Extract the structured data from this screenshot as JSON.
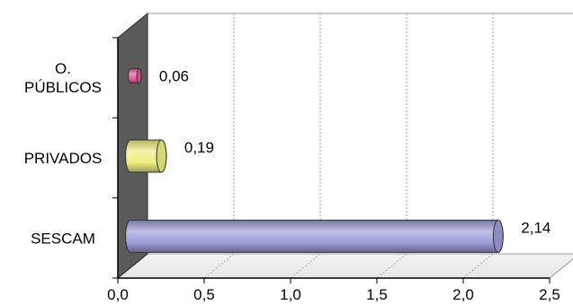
{
  "chart_data": {
    "type": "bar",
    "orientation": "horizontal",
    "style": "3d-cylinder",
    "categories": [
      {
        "lines": [
          "O.",
          "PÚBLICOS"
        ]
      },
      {
        "lines": [
          "PRIVADOS"
        ]
      },
      {
        "lines": [
          "SESCAM"
        ]
      }
    ],
    "values": [
      0.06,
      0.19,
      2.14
    ],
    "value_labels": [
      "0,06",
      "0,19",
      "2,14"
    ],
    "bar_colors": [
      "#e25a9a",
      "#eeee80",
      "#9c9cd8"
    ],
    "xlim": [
      0,
      2.5
    ],
    "xticks": [
      0,
      0.5,
      1.0,
      1.5,
      2.0,
      2.5
    ],
    "xtick_labels": [
      "0,0",
      "0,5",
      "1,0",
      "1,5",
      "2,0",
      "2,5"
    ],
    "grid": true,
    "title": "",
    "xlabel": "",
    "ylabel": ""
  }
}
